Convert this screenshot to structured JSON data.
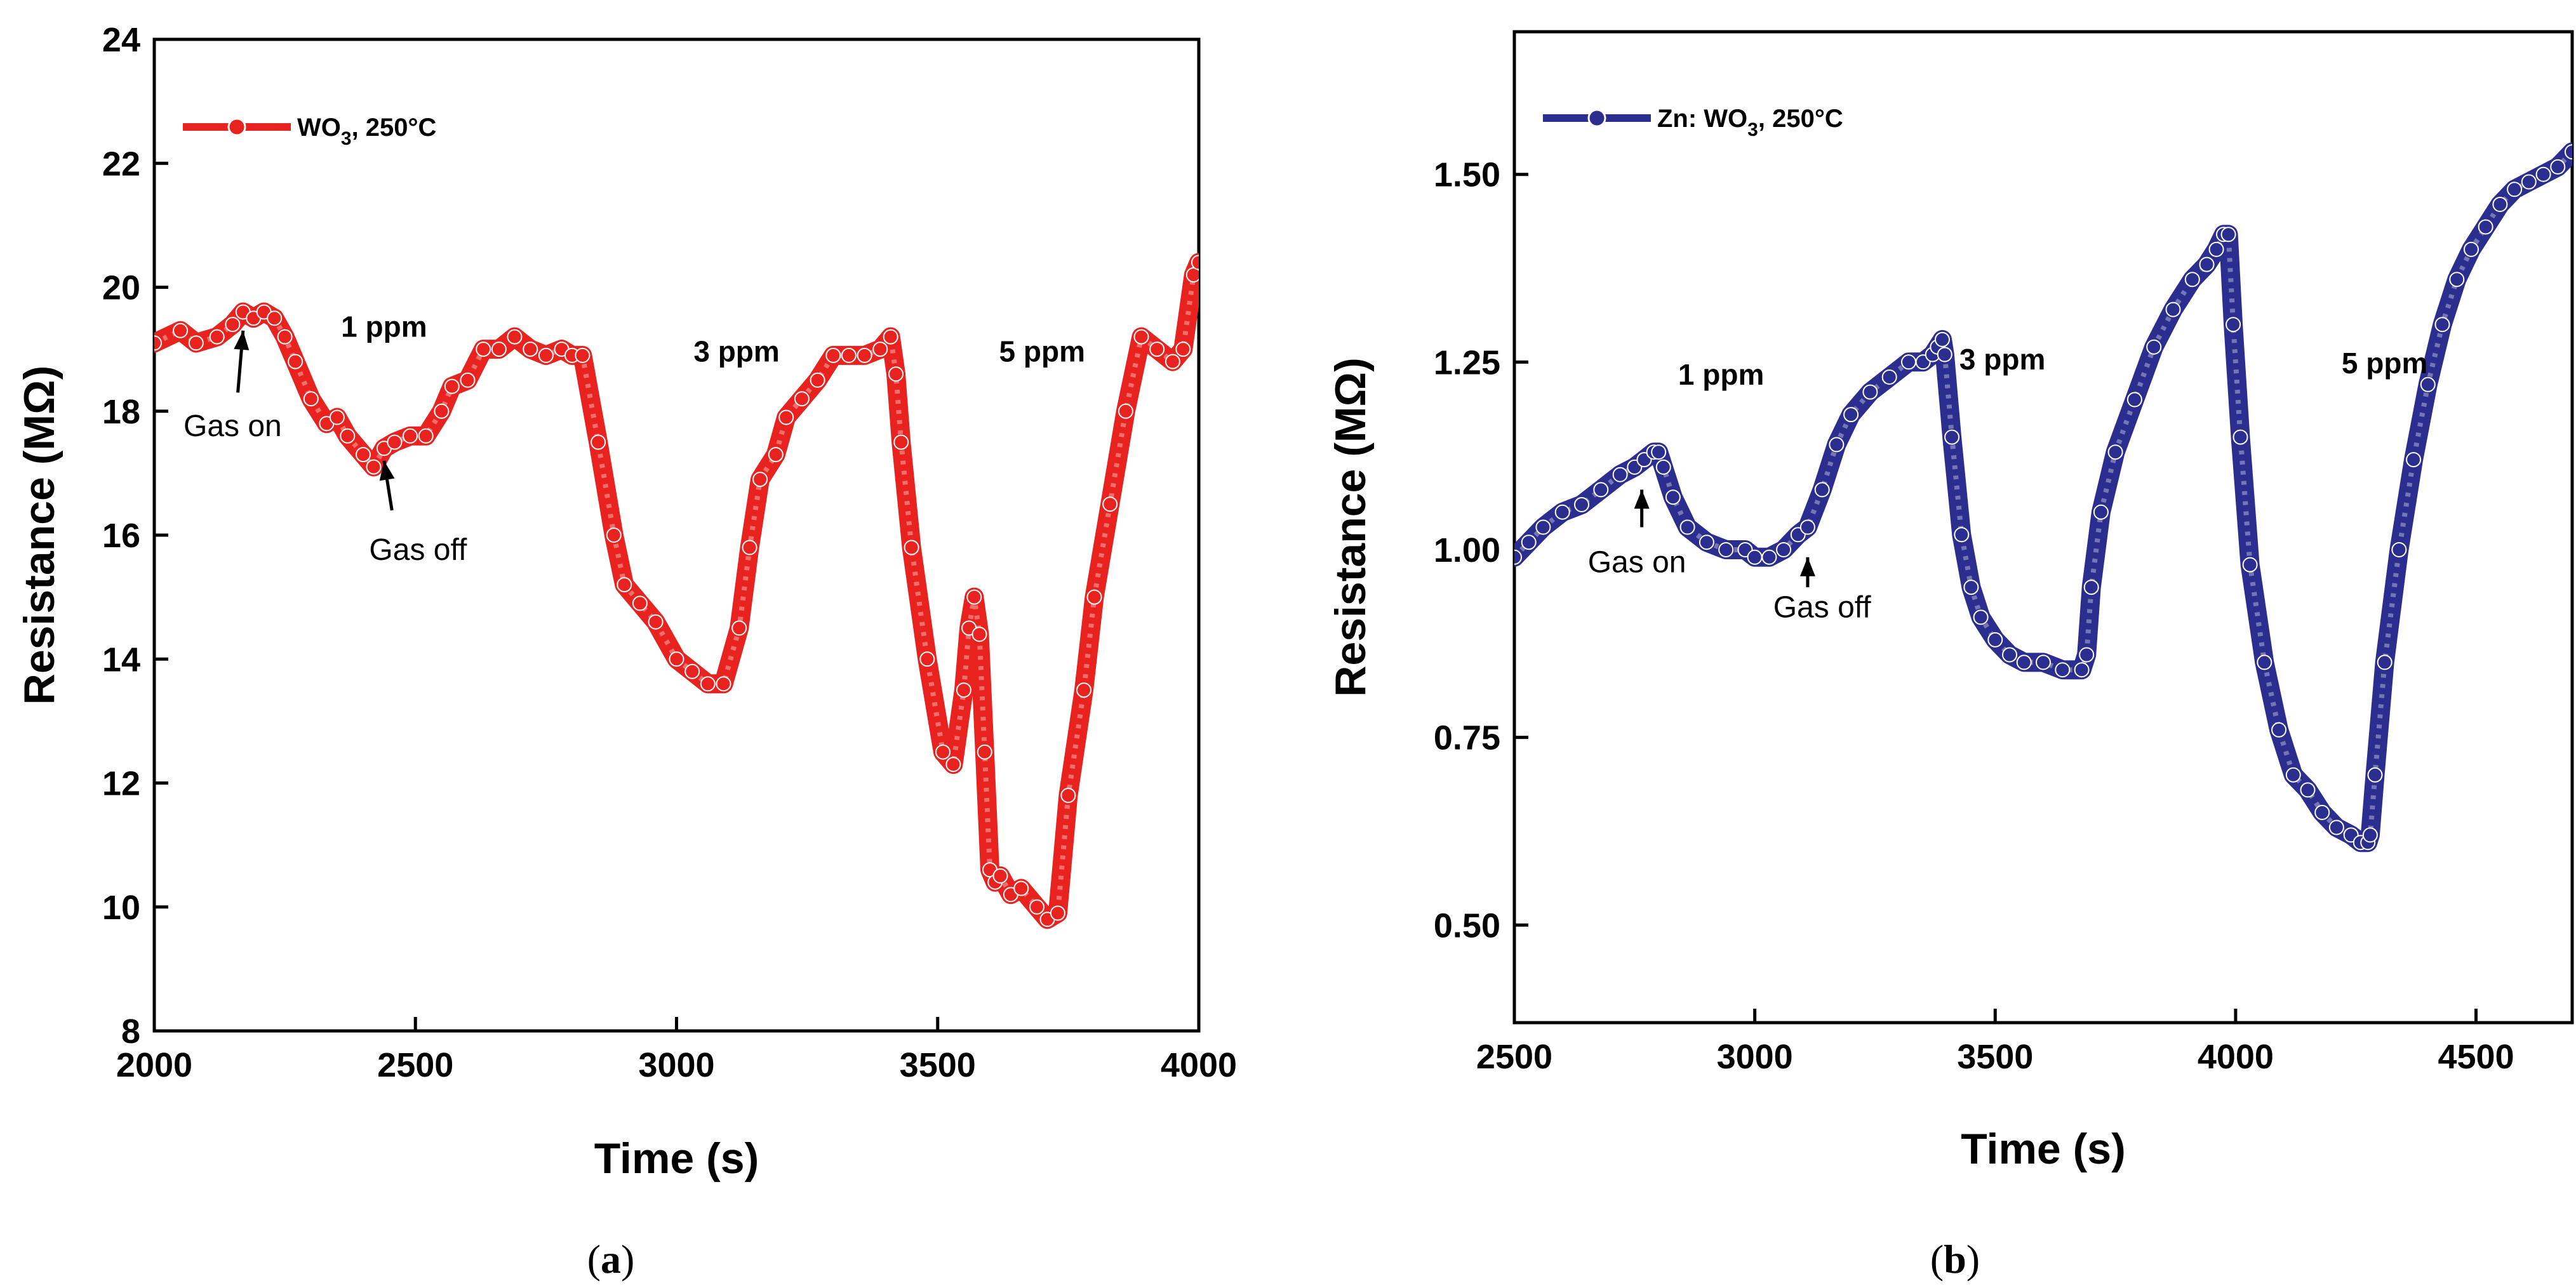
{
  "chart_data": [
    {
      "type": "scatter",
      "panel": "a",
      "xlabel": "Time (s)",
      "ylabel": "Resistance (MΩ)",
      "xlim": [
        2000,
        4000
      ],
      "ylim": [
        8,
        24
      ],
      "xticks": [
        2000,
        2500,
        3000,
        3500,
        4000
      ],
      "yticks": [
        8,
        10,
        12,
        14,
        16,
        18,
        20,
        22,
        24
      ],
      "color": "#e8231f",
      "legend": {
        "label": "WO",
        "sub": "3",
        "suffix": ", 250°C",
        "position": "top-left"
      },
      "series": [
        {
          "name": "WO3, 250°C",
          "x": [
            2000,
            2050,
            2080,
            2120,
            2150,
            2170,
            2190,
            2210,
            2230,
            2250,
            2270,
            2300,
            2330,
            2350,
            2370,
            2400,
            2420,
            2440,
            2460,
            2490,
            2520,
            2550,
            2570,
            2600,
            2630,
            2660,
            2690,
            2720,
            2750,
            2780,
            2800,
            2820,
            2850,
            2880,
            2900,
            2930,
            2960,
            3000,
            3030,
            3060,
            3090,
            3120,
            3140,
            3160,
            3190,
            3210,
            3240,
            3270,
            3300,
            3330,
            3360,
            3390,
            3410,
            3420,
            3430,
            3450,
            3480,
            3510,
            3530,
            3550,
            3560,
            3570,
            3580,
            3590,
            3600,
            3610,
            3620,
            3640,
            3660,
            3690,
            3710,
            3730,
            3750,
            3780,
            3800,
            3830,
            3860,
            3890,
            3920,
            3950,
            3970,
            3990,
            4000
          ],
          "y": [
            19.1,
            19.3,
            19.1,
            19.2,
            19.4,
            19.6,
            19.5,
            19.6,
            19.5,
            19.2,
            18.8,
            18.2,
            17.8,
            17.9,
            17.6,
            17.3,
            17.1,
            17.4,
            17.5,
            17.6,
            17.6,
            18.0,
            18.4,
            18.5,
            19.0,
            19.0,
            19.2,
            19.0,
            18.9,
            19.0,
            18.9,
            18.9,
            17.5,
            16.0,
            15.2,
            14.9,
            14.6,
            14.0,
            13.8,
            13.6,
            13.6,
            14.5,
            15.8,
            16.9,
            17.3,
            17.9,
            18.2,
            18.5,
            18.9,
            18.9,
            18.9,
            19.0,
            19.2,
            18.6,
            17.5,
            15.8,
            14.0,
            12.5,
            12.3,
            13.5,
            14.5,
            15.0,
            14.4,
            12.5,
            10.6,
            10.4,
            10.5,
            10.2,
            10.3,
            10.0,
            9.8,
            9.9,
            11.8,
            13.5,
            15.0,
            16.5,
            18.0,
            19.2,
            19.0,
            18.8,
            19.0,
            20.2,
            20.4
          ]
        }
      ],
      "annotations": [
        {
          "text": "1 ppm",
          "x": 2440,
          "y": 19.2
        },
        {
          "text": "3 ppm",
          "x": 3115,
          "y": 18.8
        },
        {
          "text": "5 ppm",
          "x": 3700,
          "y": 18.8
        }
      ],
      "arrows": [
        {
          "text": "Gas on",
          "tip_x": 2170,
          "tip_y": 19.3,
          "tail_x": 2160,
          "tail_y": 18.3,
          "text_x": 2150,
          "text_y": 17.6
        },
        {
          "text": "Gas off",
          "tip_x": 2440,
          "tip_y": 17.2,
          "tail_x": 2455,
          "tail_y": 16.4,
          "text_x": 2505,
          "text_y": 15.6
        }
      ],
      "caption": "a"
    },
    {
      "type": "scatter",
      "panel": "b",
      "xlabel": "Time (s)",
      "ylabel": "Resistance (MΩ)",
      "xlim": [
        2500,
        4700
      ],
      "ylim": [
        0.37,
        1.69
      ],
      "xticks": [
        2500,
        3000,
        3500,
        4000,
        4500
      ],
      "yticks": [
        0.5,
        0.75,
        1.0,
        1.25,
        1.5
      ],
      "ytick_labels": [
        "0.50",
        "0.75",
        "1.00",
        "1.25",
        "1.50"
      ],
      "color": "#2b2e8e",
      "legend": {
        "label": "Zn: WO",
        "sub": "3",
        "suffix": ", 250°C",
        "position": "top-left"
      },
      "series": [
        {
          "name": "Zn: WO3, 250°C",
          "x": [
            2500,
            2530,
            2560,
            2600,
            2640,
            2680,
            2720,
            2750,
            2770,
            2790,
            2800,
            2810,
            2830,
            2860,
            2900,
            2940,
            2980,
            3000,
            3030,
            3060,
            3090,
            3110,
            3140,
            3170,
            3200,
            3240,
            3280,
            3320,
            3350,
            3370,
            3380,
            3390,
            3395,
            3410,
            3430,
            3450,
            3470,
            3500,
            3530,
            3560,
            3600,
            3640,
            3680,
            3690,
            3700,
            3720,
            3750,
            3790,
            3830,
            3870,
            3910,
            3940,
            3960,
            3975,
            3985,
            3995,
            4010,
            4030,
            4060,
            4090,
            4120,
            4150,
            4180,
            4210,
            4240,
            4260,
            4275,
            4280,
            4290,
            4310,
            4340,
            4370,
            4400,
            4430,
            4460,
            4490,
            4520,
            4550,
            4580,
            4610,
            4640,
            4670,
            4700
          ],
          "y": [
            0.99,
            1.01,
            1.03,
            1.05,
            1.06,
            1.08,
            1.1,
            1.11,
            1.12,
            1.13,
            1.13,
            1.11,
            1.07,
            1.03,
            1.01,
            1.0,
            1.0,
            0.99,
            0.99,
            1.0,
            1.02,
            1.03,
            1.08,
            1.14,
            1.18,
            1.21,
            1.23,
            1.25,
            1.25,
            1.26,
            1.27,
            1.28,
            1.26,
            1.15,
            1.02,
            0.95,
            0.91,
            0.88,
            0.86,
            0.85,
            0.85,
            0.84,
            0.84,
            0.86,
            0.95,
            1.05,
            1.13,
            1.2,
            1.27,
            1.32,
            1.36,
            1.38,
            1.4,
            1.42,
            1.42,
            1.3,
            1.15,
            0.98,
            0.85,
            0.76,
            0.7,
            0.68,
            0.65,
            0.63,
            0.62,
            0.61,
            0.61,
            0.62,
            0.7,
            0.85,
            1.0,
            1.12,
            1.22,
            1.3,
            1.36,
            1.4,
            1.43,
            1.46,
            1.48,
            1.49,
            1.5,
            1.51,
            1.53
          ]
        }
      ],
      "annotations": [
        {
          "text": "1 ppm",
          "x": 2930,
          "y": 1.22
        },
        {
          "text": "3 ppm",
          "x": 3515,
          "y": 1.24
        },
        {
          "text": "5 ppm",
          "x": 4310,
          "y": 1.235
        }
      ],
      "arrows": [
        {
          "text": "Gas on",
          "tip_x": 2765,
          "tip_y": 1.08,
          "tail_x": 2765,
          "tail_y": 1.03,
          "text_x": 2755,
          "text_y": 0.97
        },
        {
          "text": "Gas off",
          "tip_x": 3110,
          "tip_y": 0.99,
          "tail_x": 3110,
          "tail_y": 0.95,
          "text_x": 3140,
          "text_y": 0.91
        }
      ],
      "caption": "b"
    }
  ]
}
